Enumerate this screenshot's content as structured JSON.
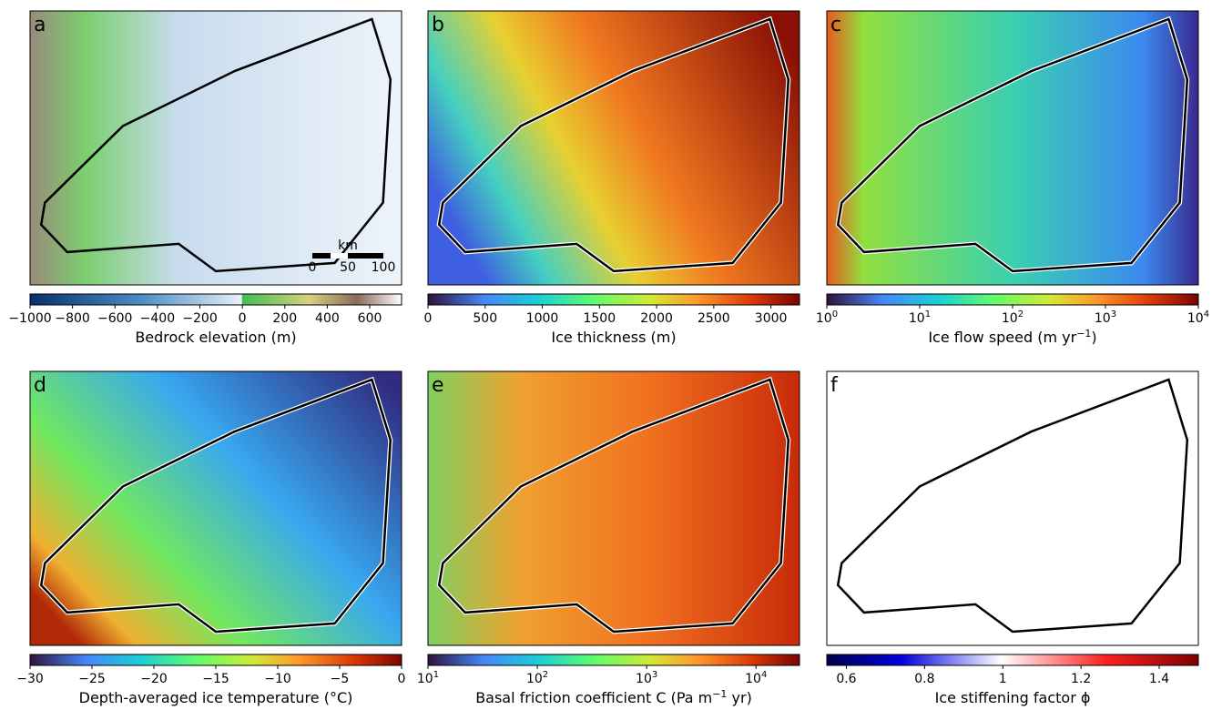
{
  "panels": [
    {
      "letter": "a",
      "colorbar": {
        "label": "Bedrock elevation (m)",
        "lim": [
          -1000,
          750
        ],
        "ticks": [
          {
            "value": -1000,
            "label": "−1000"
          },
          {
            "value": -800,
            "label": "−800"
          },
          {
            "value": -600,
            "label": "−600"
          },
          {
            "value": -400,
            "label": "−400"
          },
          {
            "value": -200,
            "label": "−200"
          },
          0,
          200,
          400,
          600
        ]
      },
      "scalebar": {
        "unit": "km",
        "ticks": [
          "0",
          "50",
          "100"
        ]
      }
    },
    {
      "letter": "b",
      "colorbar": {
        "label": "Ice thickness (m)",
        "lim": [
          0,
          3250
        ],
        "ticks": [
          0,
          500,
          1000,
          1500,
          2000,
          2500,
          3000
        ]
      }
    },
    {
      "letter": "c",
      "colorbar": {
        "label": "Ice flow speed (m yr",
        "label_sup": "−1",
        "label_end": ")",
        "log": true,
        "lim": [
          1,
          10000
        ],
        "ticks": [
          {
            "value": 1,
            "label": "10",
            "sup": "0"
          },
          {
            "value": 10,
            "label": "10",
            "sup": "1"
          },
          {
            "value": 100,
            "label": "10",
            "sup": "2"
          },
          {
            "value": 1000,
            "label": "10",
            "sup": "3"
          },
          {
            "value": 10000,
            "label": "10",
            "sup": "4"
          }
        ]
      }
    },
    {
      "letter": "d",
      "colorbar": {
        "label": "Depth-averaged ice temperature (°C)",
        "lim": [
          -30,
          0
        ],
        "ticks": [
          {
            "value": -30,
            "label": "−30"
          },
          {
            "value": -25,
            "label": "−25"
          },
          {
            "value": -20,
            "label": "−20"
          },
          {
            "value": -15,
            "label": "−15"
          },
          {
            "value": -10,
            "label": "−10"
          },
          {
            "value": -5,
            "label": "−5"
          },
          0
        ]
      }
    },
    {
      "letter": "e",
      "colorbar": {
        "label": "Basal friction coefficient C (Pa m",
        "label_sup": "−1",
        "label_end": " yr)",
        "log": true,
        "lim": [
          10,
          25000
        ],
        "ticks": [
          {
            "value": 10,
            "label": "10",
            "sup": "1"
          },
          {
            "value": 100,
            "label": "10",
            "sup": "2"
          },
          {
            "value": 1000,
            "label": "10",
            "sup": "3"
          },
          {
            "value": 10000,
            "label": "10",
            "sup": "4"
          }
        ]
      }
    },
    {
      "letter": "f",
      "colorbar": {
        "label": "Ice stiffening factor ϕ",
        "lim": [
          0.55,
          1.5
        ],
        "ticks": [
          0.6,
          0.8,
          1.0,
          1.2,
          1.4
        ]
      }
    }
  ]
}
